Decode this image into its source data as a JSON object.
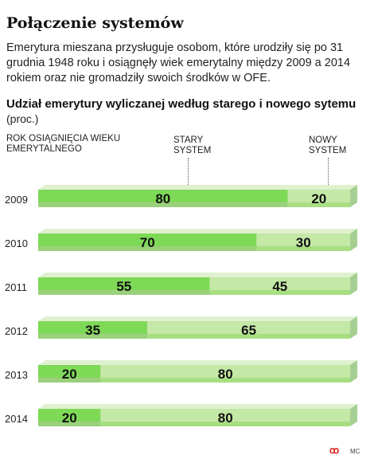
{
  "header": {
    "title": "Połączenie systemów",
    "lede": "Emerytura mieszana przysługuje osobom, które urodziły się po 31 grudnia 1948 roku i osiągnęły wiek emerytalny między 2009 a 2014 rokiem oraz nie gromadziły swoich środków w OFE.",
    "subtitle": "Udział emerytury wyliczanej według starego i nowego sytemu",
    "unit": "(proc.)"
  },
  "columns": {
    "year": "ROK OSIĄGNIĘCIA WIEKU EMERYTALNEGO",
    "old": "STARY SYSTEM",
    "new": "NOWY SYSTEM"
  },
  "footer": {
    "logo": "ꝏ",
    "credit": "MC"
  },
  "chart_data": {
    "type": "bar",
    "orientation": "horizontal-stacked",
    "categories": [
      "2009",
      "2010",
      "2011",
      "2012",
      "2013",
      "2014"
    ],
    "series": [
      {
        "name": "STARY SYSTEM",
        "values": [
          80,
          70,
          55,
          35,
          20,
          20
        ],
        "color": "#7ed957"
      },
      {
        "name": "NOWY SYSTEM",
        "values": [
          20,
          30,
          45,
          65,
          80,
          80
        ],
        "color": "#c4e8a6"
      }
    ],
    "xlim": [
      0,
      100
    ]
  }
}
